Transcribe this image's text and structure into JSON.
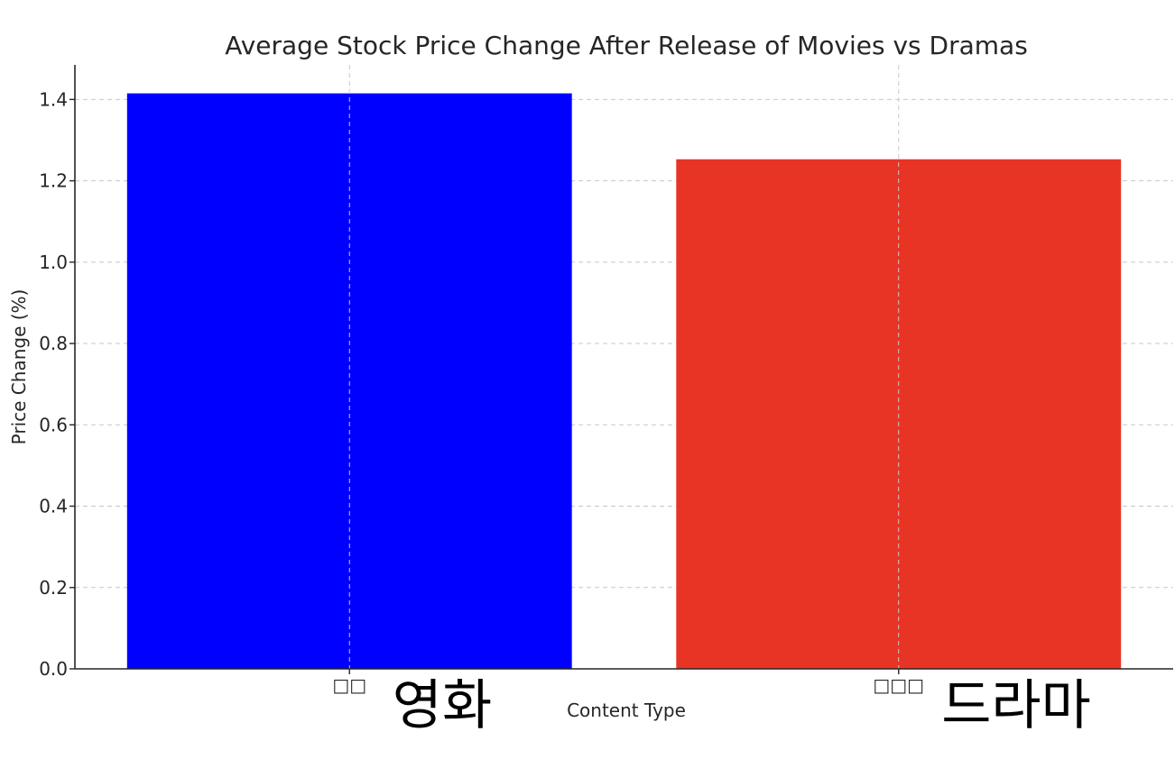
{
  "chart_data": {
    "type": "bar",
    "title": "Average Stock Price Change After Release of Movies vs Dramas",
    "xlabel": "Content Type",
    "ylabel": "Price Change (%)",
    "categories": [
      "□□",
      "□□□"
    ],
    "category_annotations": [
      "영화",
      "드라마"
    ],
    "values": [
      1.415,
      1.253
    ],
    "colors": [
      "#0000ff",
      "#e83424"
    ],
    "ylim": [
      0,
      1.485
    ],
    "yticks": [
      "0.0",
      "0.2",
      "0.4",
      "0.6",
      "0.8",
      "1.0",
      "1.2",
      "1.4"
    ],
    "grid": true
  }
}
